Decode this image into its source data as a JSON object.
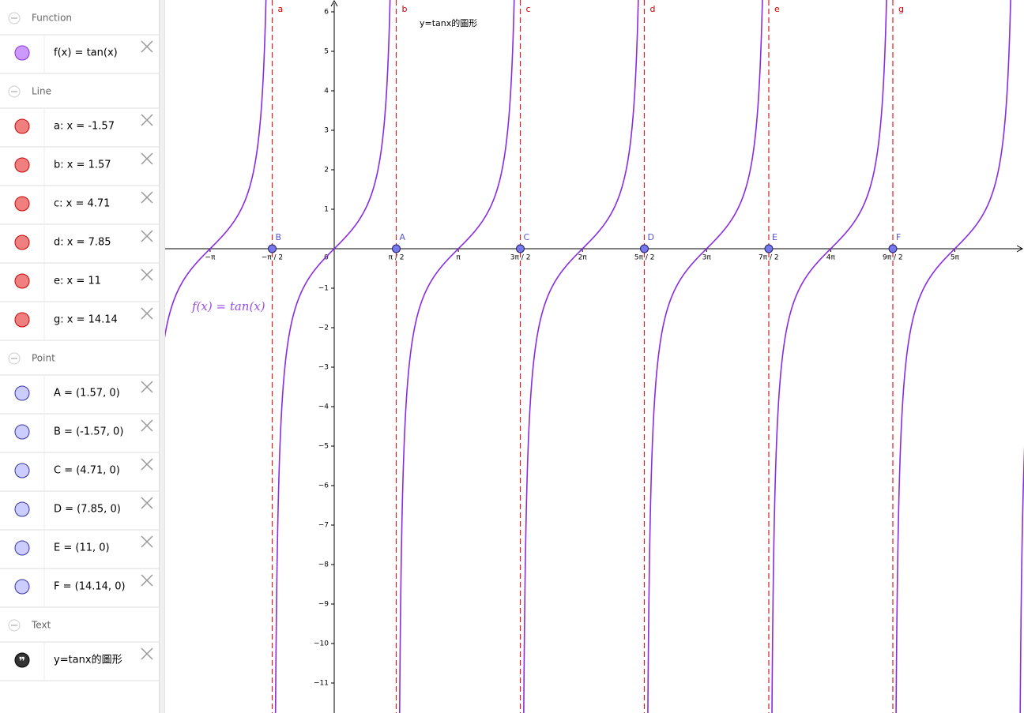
{
  "algebra": {
    "groups": [
      {
        "title": "Function",
        "items": [
          {
            "text": "f(x) = tan(x)"
          }
        ]
      },
      {
        "title": "Line",
        "items": [
          {
            "text": "a: x = -1.57"
          },
          {
            "text": "b: x = 1.57"
          },
          {
            "text": "c: x = 4.71"
          },
          {
            "text": "d: x = 7.85"
          },
          {
            "text": "e: x = 11"
          },
          {
            "text": "g: x = 14.14"
          }
        ]
      },
      {
        "title": "Point",
        "items": [
          {
            "text": "A = (1.57, 0)"
          },
          {
            "text": "B = (-1.57, 0)"
          },
          {
            "text": "C = (4.71, 0)"
          },
          {
            "text": "D = (7.85, 0)"
          },
          {
            "text": "E = (11, 0)"
          },
          {
            "text": "F = (14.14, 0)"
          }
        ]
      },
      {
        "title": "Text",
        "items": [
          {
            "text": "y=tanx的圖形"
          }
        ]
      }
    ]
  },
  "graphics": {
    "text": "y=tanx的圖形",
    "function_label": "f(x) = tan(x)",
    "xticks": [
      {
        "value": -3.14159,
        "label": "−π"
      },
      {
        "value": -1.5708,
        "label": "−π / 2"
      },
      0,
      {
        "value": 1.5708,
        "label": "π / 2"
      },
      {
        "value": 3.14159,
        "label": "π"
      },
      {
        "value": 4.71239,
        "label": "3π / 2"
      },
      {
        "value": 6.28319,
        "label": "2π"
      },
      {
        "value": 7.85398,
        "label": "5π / 2"
      },
      {
        "value": 9.42478,
        "label": "3π"
      },
      {
        "value": 10.99557,
        "label": "7π / 2"
      },
      {
        "value": 12.56637,
        "label": "4π"
      },
      {
        "value": 14.13717,
        "label": "9π / 2"
      },
      {
        "value": 15.70796,
        "label": "5π"
      }
    ],
    "yticks": [
      6,
      5,
      4,
      3,
      2,
      1,
      {
        "value": -1,
        "label": "−1"
      },
      {
        "value": -2,
        "label": "−2"
      },
      {
        "value": -3,
        "label": "−3"
      },
      {
        "value": -4,
        "label": "−4"
      },
      {
        "value": -5,
        "label": "−5"
      },
      {
        "value": -6,
        "label": "−6"
      },
      {
        "value": -7,
        "label": "−7"
      },
      {
        "value": -8,
        "label": "−8"
      },
      {
        "value": -9,
        "label": "−9"
      },
      {
        "value": -10,
        "label": "−10"
      },
      {
        "value": -11,
        "label": "−11"
      }
    ],
    "lines": [
      {
        "name": "a",
        "x": -1.57
      },
      {
        "name": "b",
        "x": 1.57
      },
      {
        "name": "c",
        "x": 4.71
      },
      {
        "name": "d",
        "x": 7.85
      },
      {
        "name": "e",
        "x": 11
      },
      {
        "name": "g",
        "x": 14.14
      }
    ],
    "points": [
      {
        "name": "A",
        "x": 1.57,
        "y": 0
      },
      {
        "name": "B",
        "x": -1.57,
        "y": 0
      },
      {
        "name": "C",
        "x": 4.71,
        "y": 0
      },
      {
        "name": "D",
        "x": 7.85,
        "y": 0
      },
      {
        "name": "E",
        "x": 11,
        "y": 0
      },
      {
        "name": "F",
        "x": 14.14,
        "y": 0
      }
    ]
  }
}
